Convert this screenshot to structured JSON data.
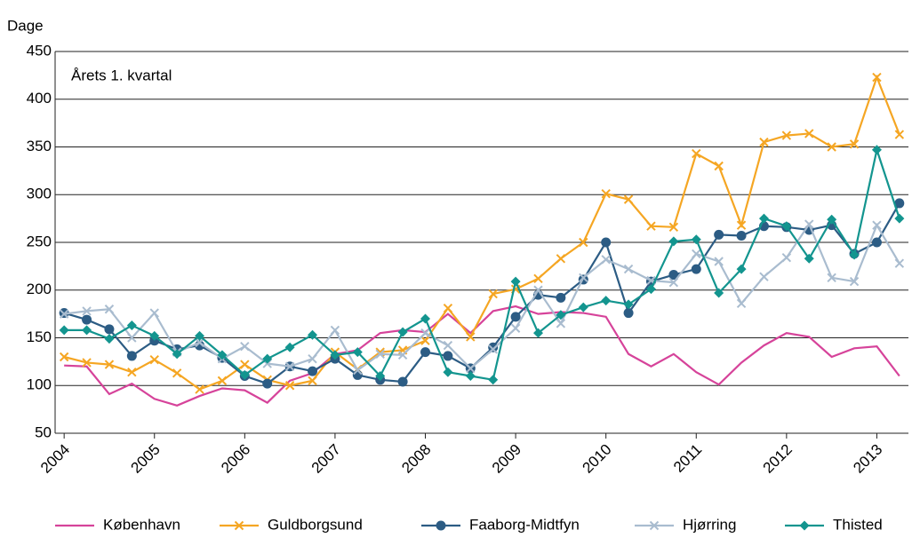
{
  "chart_data": {
    "type": "line",
    "ylabel": "Dage",
    "annotation": "Årets 1. kvartal",
    "x": [
      2004,
      2004.25,
      2004.5,
      2004.75,
      2005,
      2005.25,
      2005.5,
      2005.75,
      2006,
      2006.25,
      2006.5,
      2006.75,
      2007,
      2007.25,
      2007.5,
      2007.75,
      2008,
      2008.25,
      2008.5,
      2008.75,
      2009,
      2009.25,
      2009.5,
      2009.75,
      2010,
      2010.25,
      2010.5,
      2010.75,
      2011,
      2011.25,
      2011.5,
      2011.75,
      2012,
      2012.25,
      2012.5,
      2012.75,
      2013,
      2013.25
    ],
    "series": [
      {
        "name": "København",
        "color": "#d6439a",
        "marker": "none",
        "values": [
          121,
          120,
          91,
          102,
          86,
          79,
          89,
          97,
          95,
          82,
          105,
          113,
          133,
          137,
          155,
          158,
          156,
          175,
          155,
          178,
          183,
          175,
          177,
          176,
          172,
          133,
          120,
          133,
          114,
          101,
          124,
          142,
          155,
          151,
          130,
          139,
          141,
          110
        ]
      },
      {
        "name": "Guldborgsund",
        "color": "#f5a623",
        "marker": "x",
        "values": [
          130,
          124,
          122,
          114,
          127,
          113,
          96,
          105,
          122,
          106,
          100,
          105,
          135,
          117,
          135,
          137,
          147,
          181,
          151,
          196,
          201,
          212,
          233,
          250,
          301,
          295,
          267,
          266,
          343,
          330,
          268,
          355,
          362,
          364,
          350,
          353,
          423,
          363
        ]
      },
      {
        "name": "Faaborg-Midtfyn",
        "color": "#2c5c84",
        "marker": "circle",
        "values": [
          176,
          169,
          159,
          131,
          147,
          138,
          142,
          129,
          110,
          102,
          120,
          115,
          128,
          111,
          106,
          104,
          135,
          131,
          118,
          140,
          172,
          195,
          192,
          211,
          250,
          176,
          209,
          216,
          222,
          258,
          257,
          267,
          266,
          263,
          268,
          238,
          250,
          291
        ]
      },
      {
        "name": "Hjørring",
        "color": "#a9bccf",
        "marker": "x",
        "values": [
          175,
          178,
          180,
          150,
          176,
          135,
          145,
          128,
          141,
          123,
          120,
          128,
          158,
          116,
          133,
          132,
          155,
          142,
          118,
          138,
          160,
          200,
          165,
          213,
          232,
          222,
          210,
          208,
          238,
          230,
          186,
          214,
          234,
          269,
          213,
          209,
          268,
          228
        ]
      },
      {
        "name": "Thisted",
        "color": "#13958f",
        "marker": "diamond",
        "values": [
          158,
          158,
          149,
          163,
          152,
          133,
          152,
          132,
          111,
          128,
          140,
          153,
          132,
          135,
          110,
          156,
          170,
          114,
          110,
          106,
          209,
          155,
          174,
          182,
          189,
          185,
          201,
          251,
          253,
          197,
          222,
          275,
          267,
          233,
          274,
          237,
          347,
          275
        ]
      }
    ],
    "xlim": [
      2003.9,
      2013.35
    ],
    "xticks": [
      2004,
      2005,
      2006,
      2007,
      2008,
      2009,
      2010,
      2011,
      2012,
      2013
    ],
    "ylim": [
      50,
      450
    ],
    "yticks": [
      50,
      100,
      150,
      200,
      250,
      300,
      350,
      400,
      450
    ],
    "grid": true,
    "legend": "bottom"
  }
}
